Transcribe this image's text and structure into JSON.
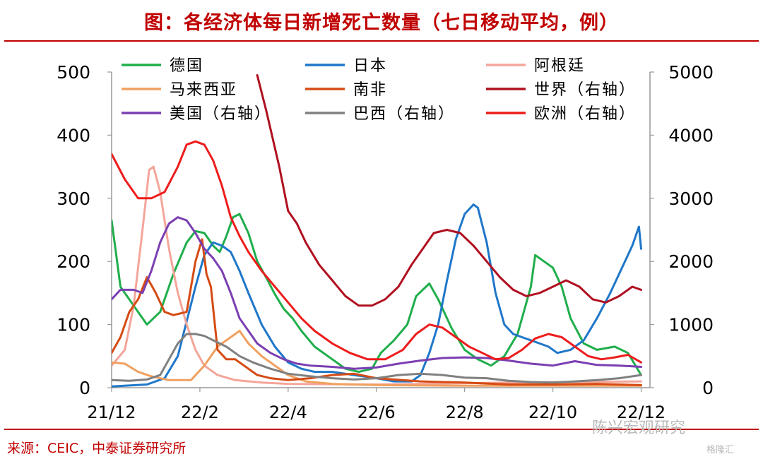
{
  "title": "图：各经济体每日新增死亡数量（七日移动平均，例）",
  "source": "来源：CEIC，中泰证券研究所",
  "watermark": "陈兴宏观研究",
  "watermark2": "格隆汇",
  "chart_data": {
    "type": "line",
    "x_ticks": [
      "21/12",
      "22/2",
      "22/4",
      "22/6",
      "22/8",
      "22/10",
      "22/12"
    ],
    "x_tick_positions": [
      0,
      2,
      4,
      6,
      8,
      10,
      12
    ],
    "x_range": [
      0,
      12.2
    ],
    "y_left": {
      "range": [
        0,
        500
      ],
      "ticks": [
        0,
        100,
        200,
        300,
        400,
        500
      ]
    },
    "y_right": {
      "range": [
        0,
        5000
      ],
      "ticks": [
        0,
        1000,
        2000,
        3000,
        4000,
        5000
      ]
    },
    "legend_position": "top",
    "series": [
      {
        "name": "德国",
        "axis": "left",
        "color": "#1fae4b",
        "points": [
          [
            0,
            265
          ],
          [
            0.2,
            160
          ],
          [
            0.5,
            130
          ],
          [
            0.8,
            100
          ],
          [
            1.1,
            120
          ],
          [
            1.4,
            180
          ],
          [
            1.7,
            230
          ],
          [
            1.9,
            248
          ],
          [
            2.1,
            245
          ],
          [
            2.3,
            225
          ],
          [
            2.45,
            215
          ],
          [
            2.6,
            240
          ],
          [
            2.75,
            270
          ],
          [
            2.9,
            275
          ],
          [
            3.1,
            245
          ],
          [
            3.3,
            200
          ],
          [
            3.5,
            175
          ],
          [
            3.7,
            148
          ],
          [
            3.9,
            125
          ],
          [
            4.1,
            110
          ],
          [
            4.3,
            90
          ],
          [
            4.6,
            65
          ],
          [
            5.0,
            45
          ],
          [
            5.3,
            30
          ],
          [
            5.6,
            25
          ],
          [
            5.9,
            30
          ],
          [
            6.1,
            55
          ],
          [
            6.4,
            75
          ],
          [
            6.7,
            100
          ],
          [
            6.9,
            145
          ],
          [
            7.2,
            165
          ],
          [
            7.4,
            140
          ],
          [
            7.7,
            95
          ],
          [
            8.0,
            60
          ],
          [
            8.3,
            45
          ],
          [
            8.6,
            35
          ],
          [
            8.9,
            50
          ],
          [
            9.2,
            85
          ],
          [
            9.5,
            160
          ],
          [
            9.6,
            210
          ],
          [
            9.8,
            200
          ],
          [
            10.0,
            190
          ],
          [
            10.2,
            160
          ],
          [
            10.4,
            110
          ],
          [
            10.7,
            70
          ],
          [
            11.0,
            60
          ],
          [
            11.4,
            65
          ],
          [
            11.7,
            55
          ],
          [
            12.0,
            20
          ]
        ]
      },
      {
        "name": "日本",
        "axis": "left",
        "color": "#1f77c9",
        "points": [
          [
            0,
            2
          ],
          [
            0.8,
            5
          ],
          [
            1.2,
            15
          ],
          [
            1.5,
            50
          ],
          [
            1.7,
            105
          ],
          [
            1.9,
            160
          ],
          [
            2.1,
            210
          ],
          [
            2.3,
            230
          ],
          [
            2.5,
            225
          ],
          [
            2.7,
            215
          ],
          [
            2.9,
            185
          ],
          [
            3.1,
            150
          ],
          [
            3.4,
            100
          ],
          [
            3.7,
            65
          ],
          [
            4.0,
            40
          ],
          [
            4.3,
            30
          ],
          [
            4.6,
            25
          ],
          [
            5.0,
            25
          ],
          [
            5.5,
            20
          ],
          [
            6.0,
            15
          ],
          [
            6.4,
            10
          ],
          [
            6.8,
            10
          ],
          [
            7.0,
            20
          ],
          [
            7.2,
            55
          ],
          [
            7.4,
            100
          ],
          [
            7.6,
            170
          ],
          [
            7.8,
            235
          ],
          [
            8.0,
            275
          ],
          [
            8.2,
            290
          ],
          [
            8.3,
            285
          ],
          [
            8.5,
            230
          ],
          [
            8.7,
            150
          ],
          [
            8.9,
            100
          ],
          [
            9.1,
            85
          ],
          [
            9.3,
            80
          ],
          [
            9.5,
            75
          ],
          [
            9.7,
            70
          ],
          [
            9.9,
            65
          ],
          [
            10.1,
            55
          ],
          [
            10.4,
            60
          ],
          [
            10.7,
            75
          ],
          [
            11.0,
            110
          ],
          [
            11.3,
            150
          ],
          [
            11.6,
            195
          ],
          [
            11.8,
            225
          ],
          [
            11.95,
            255
          ],
          [
            12.0,
            220
          ]
        ]
      },
      {
        "name": "阿根廷",
        "axis": "left",
        "color": "#f4a59a",
        "points": [
          [
            0,
            35
          ],
          [
            0.3,
            60
          ],
          [
            0.5,
            130
          ],
          [
            0.7,
            250
          ],
          [
            0.85,
            345
          ],
          [
            0.95,
            350
          ],
          [
            1.1,
            310
          ],
          [
            1.3,
            220
          ],
          [
            1.5,
            150
          ],
          [
            1.7,
            100
          ],
          [
            1.9,
            60
          ],
          [
            2.1,
            35
          ],
          [
            2.4,
            20
          ],
          [
            2.8,
            12
          ],
          [
            3.4,
            8
          ],
          [
            4.0,
            6
          ],
          [
            6.0,
            5
          ],
          [
            9.0,
            8
          ],
          [
            12.0,
            10
          ]
        ]
      },
      {
        "name": "马来西亚",
        "axis": "left",
        "color": "#f0a060",
        "points": [
          [
            0,
            40
          ],
          [
            0.3,
            38
          ],
          [
            0.6,
            25
          ],
          [
            0.9,
            18
          ],
          [
            1.3,
            12
          ],
          [
            1.8,
            12
          ],
          [
            2.1,
            35
          ],
          [
            2.4,
            65
          ],
          [
            2.7,
            80
          ],
          [
            2.9,
            90
          ],
          [
            3.1,
            70
          ],
          [
            3.4,
            50
          ],
          [
            3.7,
            35
          ],
          [
            4.0,
            20
          ],
          [
            4.4,
            10
          ],
          [
            5.0,
            6
          ],
          [
            6.0,
            4
          ],
          [
            8.0,
            3
          ],
          [
            12.0,
            3
          ]
        ]
      },
      {
        "name": "南非",
        "axis": "left",
        "color": "#d54b13",
        "points": [
          [
            0,
            55
          ],
          [
            0.2,
            80
          ],
          [
            0.4,
            120
          ],
          [
            0.6,
            140
          ],
          [
            0.8,
            175
          ],
          [
            1.0,
            150
          ],
          [
            1.2,
            120
          ],
          [
            1.4,
            115
          ],
          [
            1.7,
            120
          ],
          [
            1.9,
            200
          ],
          [
            2.05,
            235
          ],
          [
            2.15,
            180
          ],
          [
            2.25,
            160
          ],
          [
            2.4,
            60
          ],
          [
            2.6,
            45
          ],
          [
            2.8,
            45
          ],
          [
            3.0,
            35
          ],
          [
            3.3,
            20
          ],
          [
            3.6,
            15
          ],
          [
            4.0,
            12
          ],
          [
            4.5,
            15
          ],
          [
            5.0,
            20
          ],
          [
            5.5,
            22
          ],
          [
            6.0,
            15
          ],
          [
            7.0,
            10
          ],
          [
            8.0,
            8
          ],
          [
            9.0,
            5
          ],
          [
            10.0,
            5
          ],
          [
            11.0,
            6
          ],
          [
            12.0,
            4
          ]
        ]
      },
      {
        "name": "世界（右轴）",
        "axis": "right",
        "color": "#b01020",
        "points": [
          [
            3.3,
            4950
          ],
          [
            3.5,
            4400
          ],
          [
            3.8,
            3500
          ],
          [
            4.0,
            2800
          ],
          [
            4.2,
            2600
          ],
          [
            4.4,
            2300
          ],
          [
            4.7,
            1950
          ],
          [
            5.0,
            1700
          ],
          [
            5.3,
            1450
          ],
          [
            5.6,
            1300
          ],
          [
            5.9,
            1300
          ],
          [
            6.2,
            1400
          ],
          [
            6.5,
            1600
          ],
          [
            6.8,
            1950
          ],
          [
            7.1,
            2250
          ],
          [
            7.3,
            2450
          ],
          [
            7.6,
            2500
          ],
          [
            7.9,
            2450
          ],
          [
            8.2,
            2250
          ],
          [
            8.5,
            2000
          ],
          [
            8.8,
            1750
          ],
          [
            9.1,
            1550
          ],
          [
            9.4,
            1450
          ],
          [
            9.7,
            1500
          ],
          [
            10.0,
            1600
          ],
          [
            10.3,
            1700
          ],
          [
            10.6,
            1600
          ],
          [
            10.9,
            1400
          ],
          [
            11.2,
            1350
          ],
          [
            11.5,
            1450
          ],
          [
            11.8,
            1600
          ],
          [
            12.0,
            1550
          ]
        ]
      },
      {
        "name": "美国（右轴）",
        "axis": "right",
        "color": "#7b3fb2",
        "points": [
          [
            0,
            1400
          ],
          [
            0.2,
            1550
          ],
          [
            0.5,
            1550
          ],
          [
            0.7,
            1500
          ],
          [
            0.9,
            1850
          ],
          [
            1.1,
            2300
          ],
          [
            1.3,
            2600
          ],
          [
            1.5,
            2700
          ],
          [
            1.7,
            2650
          ],
          [
            1.9,
            2450
          ],
          [
            2.1,
            2200
          ],
          [
            2.3,
            2050
          ],
          [
            2.5,
            1850
          ],
          [
            2.7,
            1500
          ],
          [
            2.9,
            1100
          ],
          [
            3.1,
            900
          ],
          [
            3.3,
            700
          ],
          [
            3.6,
            550
          ],
          [
            3.9,
            450
          ],
          [
            4.2,
            380
          ],
          [
            4.5,
            350
          ],
          [
            5.0,
            330
          ],
          [
            5.5,
            300
          ],
          [
            6.0,
            320
          ],
          [
            6.5,
            380
          ],
          [
            7.0,
            430
          ],
          [
            7.5,
            470
          ],
          [
            8.0,
            480
          ],
          [
            8.5,
            470
          ],
          [
            9.0,
            430
          ],
          [
            9.5,
            380
          ],
          [
            10.0,
            350
          ],
          [
            10.5,
            420
          ],
          [
            11.0,
            360
          ],
          [
            11.5,
            350
          ],
          [
            12.0,
            330
          ]
        ]
      },
      {
        "name": "巴西（右轴）",
        "axis": "right",
        "color": "#808080",
        "points": [
          [
            0,
            120
          ],
          [
            0.4,
            110
          ],
          [
            0.8,
            130
          ],
          [
            1.1,
            200
          ],
          [
            1.3,
            450
          ],
          [
            1.5,
            700
          ],
          [
            1.7,
            850
          ],
          [
            1.9,
            850
          ],
          [
            2.1,
            820
          ],
          [
            2.3,
            750
          ],
          [
            2.6,
            650
          ],
          [
            2.9,
            500
          ],
          [
            3.2,
            400
          ],
          [
            3.6,
            300
          ],
          [
            4.0,
            220
          ],
          [
            4.5,
            180
          ],
          [
            5.0,
            150
          ],
          [
            5.5,
            130
          ],
          [
            6.0,
            150
          ],
          [
            6.5,
            200
          ],
          [
            7.0,
            220
          ],
          [
            7.5,
            200
          ],
          [
            8.0,
            160
          ],
          [
            8.5,
            150
          ],
          [
            9.0,
            110
          ],
          [
            9.5,
            90
          ],
          [
            10.0,
            80
          ],
          [
            10.5,
            100
          ],
          [
            11.0,
            120
          ],
          [
            11.5,
            150
          ],
          [
            12.0,
            200
          ]
        ]
      },
      {
        "name": "欧洲（右轴）",
        "axis": "right",
        "color": "#ee1c1c",
        "points": [
          [
            0,
            3700
          ],
          [
            0.3,
            3300
          ],
          [
            0.6,
            3000
          ],
          [
            0.9,
            3000
          ],
          [
            1.2,
            3100
          ],
          [
            1.5,
            3500
          ],
          [
            1.7,
            3850
          ],
          [
            1.9,
            3900
          ],
          [
            2.1,
            3850
          ],
          [
            2.3,
            3600
          ],
          [
            2.5,
            3200
          ],
          [
            2.7,
            2700
          ],
          [
            2.9,
            2400
          ],
          [
            3.1,
            2150
          ],
          [
            3.4,
            1850
          ],
          [
            3.7,
            1600
          ],
          [
            4.0,
            1350
          ],
          [
            4.3,
            1100
          ],
          [
            4.6,
            900
          ],
          [
            5.0,
            700
          ],
          [
            5.4,
            550
          ],
          [
            5.8,
            450
          ],
          [
            6.2,
            450
          ],
          [
            6.6,
            600
          ],
          [
            6.9,
            850
          ],
          [
            7.2,
            1000
          ],
          [
            7.5,
            950
          ],
          [
            7.8,
            800
          ],
          [
            8.1,
            650
          ],
          [
            8.4,
            550
          ],
          [
            8.7,
            450
          ],
          [
            9.0,
            470
          ],
          [
            9.3,
            600
          ],
          [
            9.6,
            780
          ],
          [
            9.9,
            850
          ],
          [
            10.2,
            800
          ],
          [
            10.5,
            650
          ],
          [
            10.8,
            500
          ],
          [
            11.1,
            450
          ],
          [
            11.4,
            480
          ],
          [
            11.7,
            520
          ],
          [
            12.0,
            400
          ]
        ]
      }
    ]
  }
}
